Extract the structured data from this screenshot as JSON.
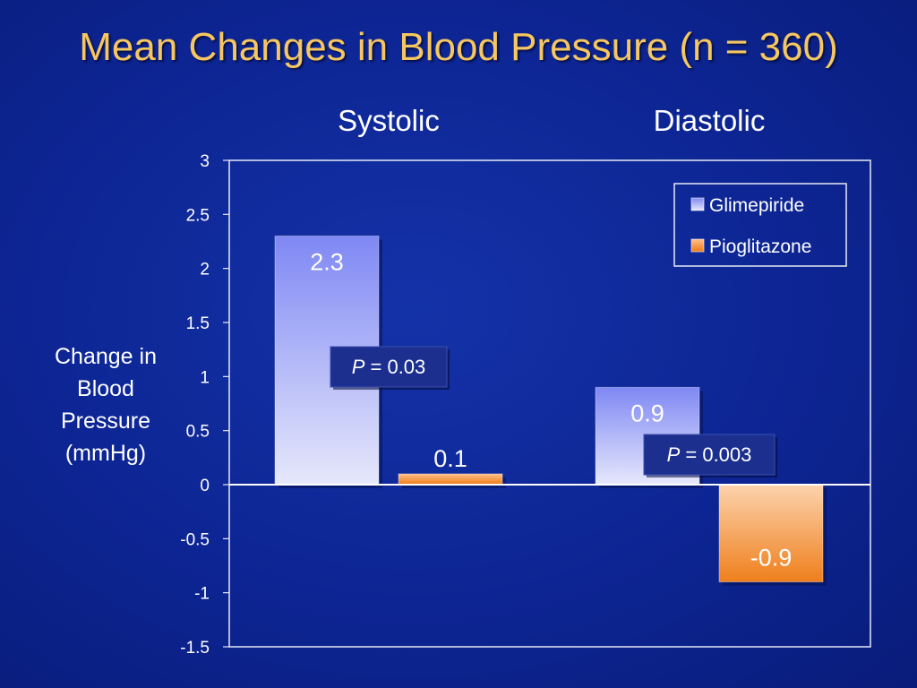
{
  "title": "Mean Changes in Blood Pressure (n = 360)",
  "colors": {
    "glimepiride": "#8e96f6",
    "pioglitazone": "#f1892c",
    "plot_border": "#e6e9f6",
    "title": "#f6c760"
  },
  "chart_data": {
    "type": "bar",
    "categories": [
      "Systolic",
      "Diastolic"
    ],
    "series": [
      {
        "name": "Glimepiride",
        "values": [
          2.3,
          0.9
        ]
      },
      {
        "name": "Pioglitazone",
        "values": [
          0.1,
          -0.9
        ]
      }
    ],
    "data_labels": [
      [
        "2.3",
        "0.9"
      ],
      [
        "0.1",
        "-0.9"
      ]
    ],
    "ylabel": "Change in Blood Pressure (mmHg)",
    "ylim": [
      -1.5,
      3
    ],
    "yticks": [
      "3",
      "2.5",
      "2",
      "1.5",
      "1",
      "0.5",
      "0",
      "-0.5",
      "-1",
      "-1.5"
    ],
    "ytick_values": [
      3,
      2.5,
      2,
      1.5,
      1,
      0.5,
      0,
      -0.5,
      -1,
      -1.5
    ],
    "grid": false,
    "legend_position": "top-right",
    "annotations": [
      {
        "category": "Systolic",
        "prefix": "P",
        "text": " = 0.03"
      },
      {
        "category": "Diastolic",
        "prefix": "P",
        "text": " = 0.003"
      }
    ]
  }
}
